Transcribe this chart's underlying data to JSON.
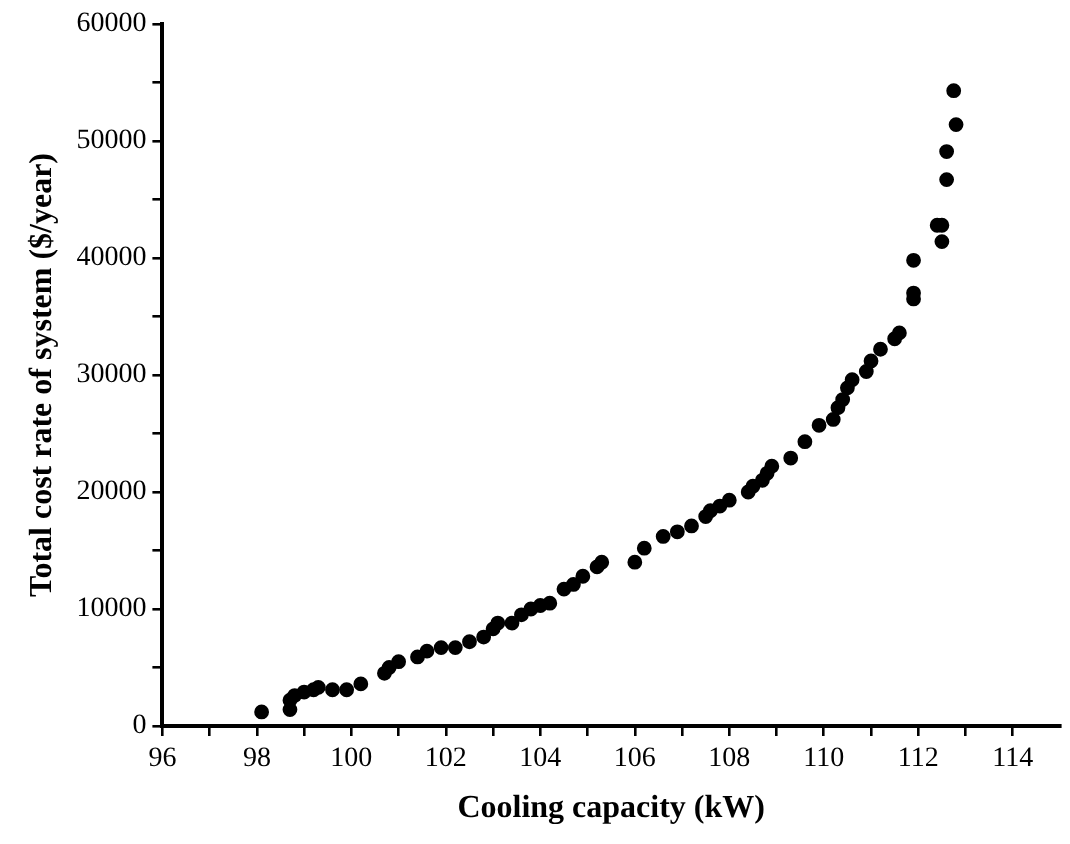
{
  "chart_data": {
    "type": "scatter",
    "xlabel": "Cooling capacity (kW)",
    "ylabel": "Total cost rate of system ($/year)",
    "x": [
      98.1,
      98.7,
      98.7,
      98.8,
      99.0,
      99.2,
      99.3,
      99.6,
      99.9,
      100.2,
      100.7,
      100.8,
      101.0,
      101.4,
      101.6,
      101.9,
      102.2,
      102.5,
      102.8,
      103.0,
      103.1,
      103.4,
      103.6,
      103.8,
      104.0,
      104.2,
      104.5,
      104.7,
      104.9,
      105.2,
      105.3,
      106.0,
      106.2,
      106.6,
      106.9,
      107.2,
      107.5,
      107.6,
      107.8,
      108.0,
      108.4,
      108.5,
      108.7,
      108.8,
      108.9,
      109.3,
      109.6,
      109.9,
      110.2,
      110.3,
      110.4,
      110.5,
      110.6,
      110.9,
      111.0,
      111.2,
      111.5,
      111.6,
      111.9,
      111.9,
      111.9,
      112.4,
      112.5,
      112.5,
      112.6,
      112.6,
      112.8,
      112.75
    ],
    "values": [
      1200,
      1400,
      2200,
      2600,
      2900,
      3100,
      3300,
      3100,
      3100,
      3600,
      4500,
      5000,
      5500,
      5900,
      6400,
      6700,
      6700,
      7200,
      7600,
      8300,
      8800,
      8800,
      9500,
      10000,
      10300,
      10500,
      11700,
      12100,
      12800,
      13600,
      14000,
      14000,
      15200,
      16200,
      16600,
      17100,
      17900,
      18400,
      18800,
      19300,
      20000,
      20500,
      21000,
      21600,
      22200,
      22900,
      24300,
      25700,
      26200,
      27200,
      27900,
      28900,
      29600,
      30300,
      31200,
      32200,
      33100,
      33600,
      36500,
      37000,
      39800,
      42800,
      42800,
      41400,
      46700,
      49100,
      51400,
      54300
    ],
    "color": "#000000",
    "marker": "circle",
    "xlim": [
      96,
      115
    ],
    "xticks": [
      96,
      {
        "value": 97,
        "label": null
      },
      98,
      {
        "value": 99,
        "label": null
      },
      100,
      {
        "value": 101,
        "label": null
      },
      102,
      {
        "value": 103,
        "label": null
      },
      104,
      {
        "value": 105,
        "label": null
      },
      106,
      {
        "value": 107,
        "label": null
      },
      108,
      {
        "value": 109,
        "label": null
      },
      110,
      {
        "value": 111,
        "label": null
      },
      112,
      {
        "value": 113,
        "label": null
      },
      114
    ],
    "ylim": [
      0,
      60000
    ],
    "yticks": [
      0,
      {
        "value": 5000,
        "label": null
      },
      10000,
      {
        "value": 15000,
        "label": null
      },
      20000,
      {
        "value": 25000,
        "label": null
      },
      30000,
      {
        "value": 35000,
        "label": null
      },
      40000,
      {
        "value": 45000,
        "label": null
      },
      50000,
      {
        "value": 55000,
        "label": null
      },
      60000
    ],
    "grid": false,
    "legend": false
  }
}
